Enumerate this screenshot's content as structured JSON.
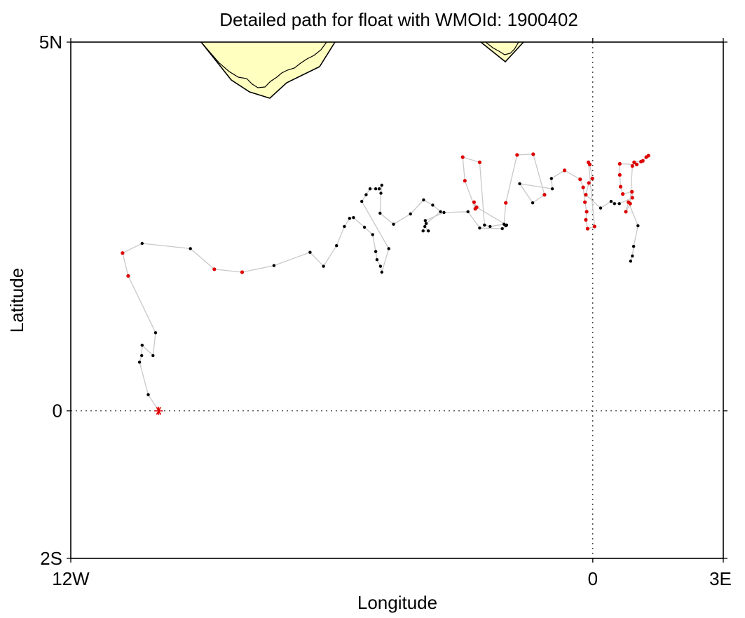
{
  "title": "Detailed path for float with WMOId: 1900402",
  "xlabel": "Longitude",
  "ylabel": "Latitude",
  "chart_data": {
    "type": "scatter",
    "title": "Detailed path for float with WMOId: 1900402",
    "xlabel": "Longitude",
    "ylabel": "Latitude",
    "xlim": [
      -12,
      3
    ],
    "ylim": [
      -2,
      5
    ],
    "x_ticks": [
      {
        "value": -12,
        "label": "12W"
      },
      {
        "value": 0,
        "label": "0"
      },
      {
        "value": 3,
        "label": "3E"
      }
    ],
    "y_ticks": [
      {
        "value": 5,
        "label": "5N"
      },
      {
        "value": 0,
        "label": "0"
      },
      {
        "value": -2,
        "label": "2S"
      }
    ],
    "reference_lines": {
      "lon": 0,
      "lat": 0,
      "style": "dotted"
    },
    "colors": {
      "track": "#c8c8c8",
      "point_black": "#000000",
      "point_red": "#dd0000",
      "start_marker": "#dd0000",
      "land_fill": "#ffffc0"
    },
    "start": {
      "lon": -9.98,
      "lat": 0.0
    },
    "path": [
      {
        "lon": -9.98,
        "lat": 0.0,
        "c": "k"
      },
      {
        "lon": -10.22,
        "lat": 0.22,
        "c": "k"
      },
      {
        "lon": -10.42,
        "lat": 0.66,
        "c": "k"
      },
      {
        "lon": -10.37,
        "lat": 0.75,
        "c": "k"
      },
      {
        "lon": -10.36,
        "lat": 0.89,
        "c": "k"
      },
      {
        "lon": -10.11,
        "lat": 0.75,
        "c": "k"
      },
      {
        "lon": -10.05,
        "lat": 1.06,
        "c": "k"
      },
      {
        "lon": -10.68,
        "lat": 1.83,
        "c": "r"
      },
      {
        "lon": -10.81,
        "lat": 2.14,
        "c": "r"
      },
      {
        "lon": -10.36,
        "lat": 2.27,
        "c": "k"
      },
      {
        "lon": -9.25,
        "lat": 2.2,
        "c": "k"
      },
      {
        "lon": -8.7,
        "lat": 1.92,
        "c": "r"
      },
      {
        "lon": -8.06,
        "lat": 1.88,
        "c": "r"
      },
      {
        "lon": -7.33,
        "lat": 1.97,
        "c": "k"
      },
      {
        "lon": -6.5,
        "lat": 2.15,
        "c": "k"
      },
      {
        "lon": -6.19,
        "lat": 1.96,
        "c": "k"
      },
      {
        "lon": -5.89,
        "lat": 2.24,
        "c": "k"
      },
      {
        "lon": -5.71,
        "lat": 2.5,
        "c": "k"
      },
      {
        "lon": -5.59,
        "lat": 2.61,
        "c": "k"
      },
      {
        "lon": -5.5,
        "lat": 2.62,
        "c": "k"
      },
      {
        "lon": -5.25,
        "lat": 2.49,
        "c": "k"
      },
      {
        "lon": -5.06,
        "lat": 2.39,
        "c": "k"
      },
      {
        "lon": -4.99,
        "lat": 2.16,
        "c": "k"
      },
      {
        "lon": -4.96,
        "lat": 2.05,
        "c": "k"
      },
      {
        "lon": -4.88,
        "lat": 1.96,
        "c": "k"
      },
      {
        "lon": -4.85,
        "lat": 1.88,
        "c": "k"
      },
      {
        "lon": -4.69,
        "lat": 2.2,
        "c": "k"
      },
      {
        "lon": -5.31,
        "lat": 2.84,
        "c": "k"
      },
      {
        "lon": -5.21,
        "lat": 2.93,
        "c": "k"
      },
      {
        "lon": -5.12,
        "lat": 3.01,
        "c": "k"
      },
      {
        "lon": -4.99,
        "lat": 3.01,
        "c": "k"
      },
      {
        "lon": -4.91,
        "lat": 3.01,
        "c": "k"
      },
      {
        "lon": -4.85,
        "lat": 3.06,
        "c": "k"
      },
      {
        "lon": -4.87,
        "lat": 2.95,
        "c": "k"
      },
      {
        "lon": -4.89,
        "lat": 2.68,
        "c": "k"
      },
      {
        "lon": -4.58,
        "lat": 2.53,
        "c": "k"
      },
      {
        "lon": -4.19,
        "lat": 2.67,
        "c": "k"
      },
      {
        "lon": -3.89,
        "lat": 2.86,
        "c": "k"
      },
      {
        "lon": -3.68,
        "lat": 2.79,
        "c": "k"
      },
      {
        "lon": -3.5,
        "lat": 2.7,
        "c": "k"
      },
      {
        "lon": -3.83,
        "lat": 2.54,
        "c": "k"
      },
      {
        "lon": -3.9,
        "lat": 2.44,
        "c": "k"
      },
      {
        "lon": -3.78,
        "lat": 2.44,
        "c": "k"
      },
      {
        "lon": -3.86,
        "lat": 2.5,
        "c": "k"
      },
      {
        "lon": -3.85,
        "lat": 2.58,
        "c": "k"
      },
      {
        "lon": -3.42,
        "lat": 2.69,
        "c": "k"
      },
      {
        "lon": -2.87,
        "lat": 2.7,
        "c": "k"
      },
      {
        "lon": -2.6,
        "lat": 2.48,
        "c": "k"
      },
      {
        "lon": -2.08,
        "lat": 2.47,
        "c": "k"
      },
      {
        "lon": -2.0,
        "lat": 2.51,
        "c": "k"
      },
      {
        "lon": -1.98,
        "lat": 2.52,
        "c": "k"
      },
      {
        "lon": -2.67,
        "lat": 2.76,
        "c": "r"
      },
      {
        "lon": -2.73,
        "lat": 2.83,
        "c": "r"
      },
      {
        "lon": -2.7,
        "lat": 2.74,
        "c": "r"
      },
      {
        "lon": -2.94,
        "lat": 3.12,
        "c": "r"
      },
      {
        "lon": -2.99,
        "lat": 3.44,
        "c": "r"
      },
      {
        "lon": -2.6,
        "lat": 3.37,
        "c": "r"
      },
      {
        "lon": -2.49,
        "lat": 2.52,
        "c": "k"
      },
      {
        "lon": -2.36,
        "lat": 2.5,
        "c": "k"
      },
      {
        "lon": -2.04,
        "lat": 2.53,
        "c": "k"
      },
      {
        "lon": -2.0,
        "lat": 2.82,
        "c": "r"
      },
      {
        "lon": -1.74,
        "lat": 3.47,
        "c": "r"
      },
      {
        "lon": -1.37,
        "lat": 3.48,
        "c": "r"
      },
      {
        "lon": -1.11,
        "lat": 2.93,
        "c": "r"
      },
      {
        "lon": -1.38,
        "lat": 2.82,
        "c": "k"
      },
      {
        "lon": -1.68,
        "lat": 3.08,
        "c": "k"
      },
      {
        "lon": -0.93,
        "lat": 3.01,
        "c": "k"
      },
      {
        "lon": -0.95,
        "lat": 3.15,
        "c": "k"
      },
      {
        "lon": -0.65,
        "lat": 3.26,
        "c": "r"
      },
      {
        "lon": -0.29,
        "lat": 3.14,
        "c": "r"
      },
      {
        "lon": -0.22,
        "lat": 3.03,
        "c": "r"
      },
      {
        "lon": -0.18,
        "lat": 2.83,
        "c": "r"
      },
      {
        "lon": -0.14,
        "lat": 2.7,
        "c": "r"
      },
      {
        "lon": -0.16,
        "lat": 2.59,
        "c": "r"
      },
      {
        "lon": -0.12,
        "lat": 2.47,
        "c": "r"
      },
      {
        "lon": 0.04,
        "lat": 2.5,
        "c": "r"
      },
      {
        "lon": -0.1,
        "lat": 3.37,
        "c": "r"
      },
      {
        "lon": -0.07,
        "lat": 3.34,
        "c": "r"
      },
      {
        "lon": -0.01,
        "lat": 3.15,
        "c": "r"
      },
      {
        "lon": -0.09,
        "lat": 3.09,
        "c": "r"
      },
      {
        "lon": -0.16,
        "lat": 2.93,
        "c": "r"
      },
      {
        "lon": 0.18,
        "lat": 2.75,
        "c": "k"
      },
      {
        "lon": 0.42,
        "lat": 2.84,
        "c": "k"
      },
      {
        "lon": 0.5,
        "lat": 2.81,
        "c": "k"
      },
      {
        "lon": 0.61,
        "lat": 2.81,
        "c": "k"
      },
      {
        "lon": 0.91,
        "lat": 2.89,
        "c": "r"
      },
      {
        "lon": 0.9,
        "lat": 2.97,
        "c": "r"
      },
      {
        "lon": 0.69,
        "lat": 2.94,
        "c": "r"
      },
      {
        "lon": 0.64,
        "lat": 3.04,
        "c": "r"
      },
      {
        "lon": 0.62,
        "lat": 3.2,
        "c": "r"
      },
      {
        "lon": 0.62,
        "lat": 3.35,
        "c": "r"
      },
      {
        "lon": 1.01,
        "lat": 3.34,
        "c": "r"
      },
      {
        "lon": 1.11,
        "lat": 3.38,
        "c": "r"
      },
      {
        "lon": 1.23,
        "lat": 3.44,
        "c": "r"
      },
      {
        "lon": 1.28,
        "lat": 3.46,
        "c": "r"
      },
      {
        "lon": 1.15,
        "lat": 3.39,
        "c": "r"
      },
      {
        "lon": 0.95,
        "lat": 3.37,
        "c": "r"
      },
      {
        "lon": 0.91,
        "lat": 3.32,
        "c": "r"
      },
      {
        "lon": 0.86,
        "lat": 2.81,
        "c": "r"
      },
      {
        "lon": 0.76,
        "lat": 2.7,
        "c": "r"
      },
      {
        "lon": 0.82,
        "lat": 2.83,
        "c": "r"
      },
      {
        "lon": 1.04,
        "lat": 2.51,
        "c": "k"
      },
      {
        "lon": 0.94,
        "lat": 2.23,
        "c": "k"
      },
      {
        "lon": 0.91,
        "lat": 2.1,
        "c": "k"
      },
      {
        "lon": 0.87,
        "lat": 2.03,
        "c": "k"
      }
    ],
    "land": [
      {
        "name": "coast-west",
        "lon_range": [
          -9.4,
          -6.0
        ]
      },
      {
        "name": "coast-east",
        "lon_range": [
          -2.6,
          -1.6
        ]
      }
    ]
  }
}
